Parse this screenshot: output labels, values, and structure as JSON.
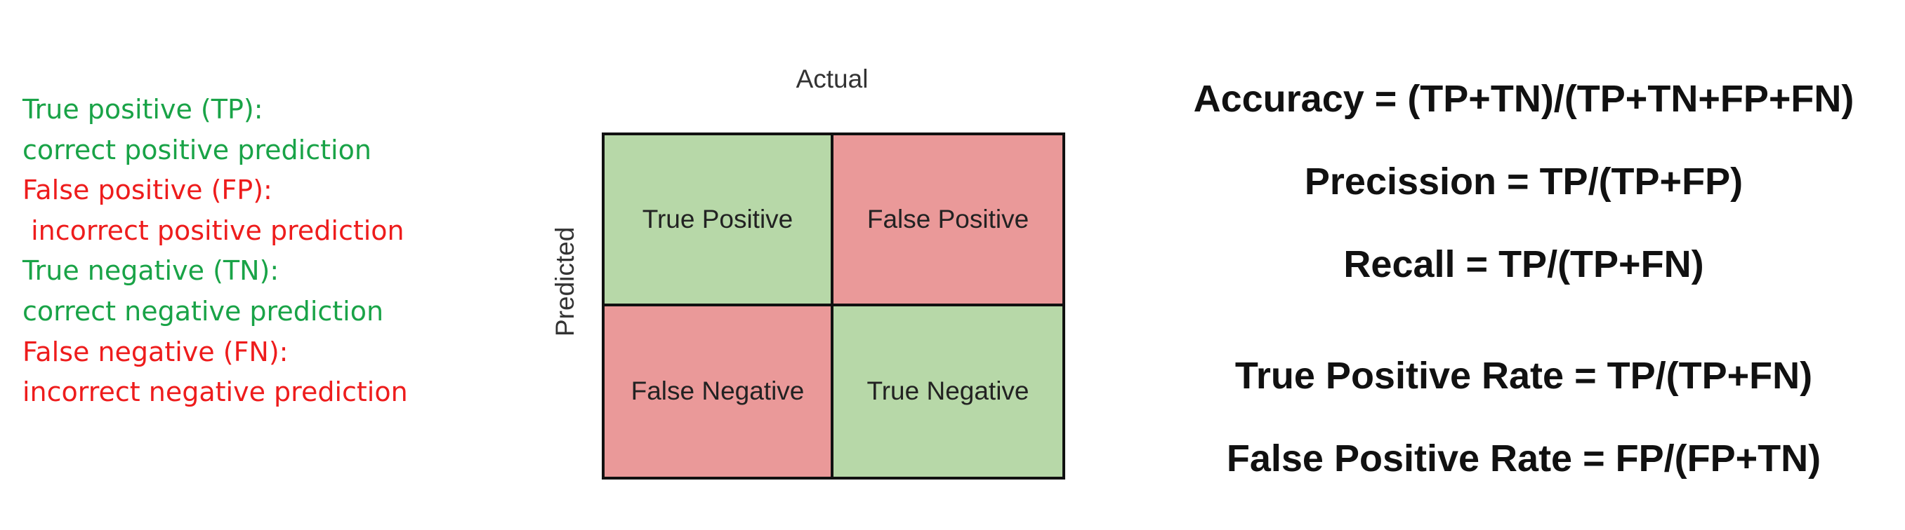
{
  "legend": {
    "items": [
      {
        "label": "True positive (TP):",
        "desc": "correct positive prediction",
        "color": "#19a347"
      },
      {
        "label": "False positive (FP):",
        "desc": " incorrect positive prediction",
        "color": "#ee1c1c"
      },
      {
        "label": "True negative (TN):",
        "desc": "correct negative prediction",
        "color": "#19a347"
      },
      {
        "label": "False negative (FN):",
        "desc": "incorrect negative prediction",
        "color": "#ee1c1c"
      }
    ]
  },
  "matrix": {
    "actual_label": "Actual",
    "predicted_label": "Predicted",
    "cells": [
      {
        "label": "True Positive",
        "color": "#b7d8a8"
      },
      {
        "label": "False Positive",
        "color": "#ea9999"
      },
      {
        "label": "False Negative",
        "color": "#ea9999"
      },
      {
        "label": "True Negative",
        "color": "#b7d8a8"
      }
    ]
  },
  "formulas": [
    "Accuracy = (TP+TN)/(TP+TN+FP+FN)",
    "Precission = TP/(TP+FP)",
    "Recall = TP/(TP+FN)",
    "True Positive Rate = TP/(TP+FN)",
    "False Positive Rate = FP/(FP+TN)"
  ]
}
